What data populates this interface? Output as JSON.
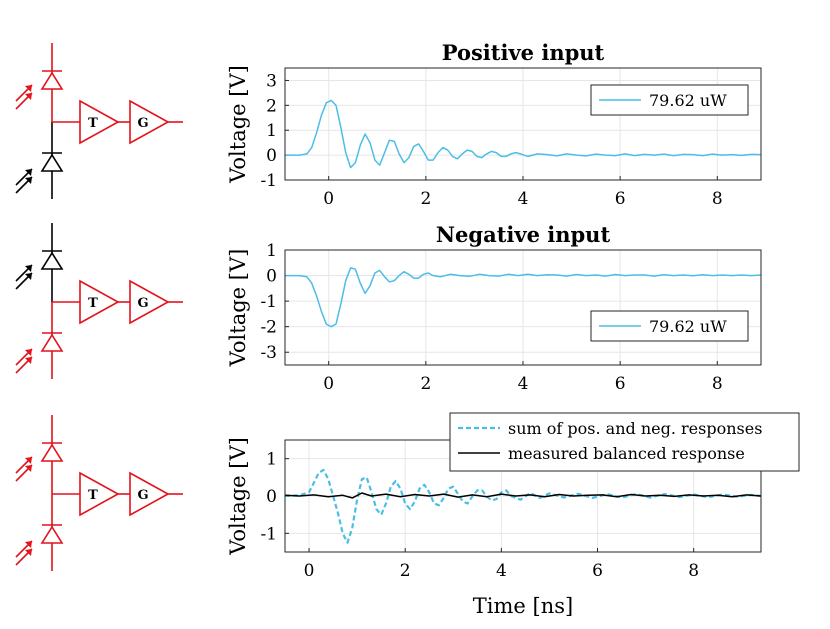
{
  "colors": {
    "circuit_red": "#e3121b",
    "circuit_black": "#000000",
    "trace_blue": "#4cbee6",
    "measured_black": "#000000",
    "grid": "#e6e6e6",
    "axis": "#262626"
  },
  "circuits": [
    {
      "top_diode": "red",
      "bottom_diode": "black",
      "top_arrows": "red",
      "bottom_arrows": "black",
      "amp_label": "T",
      "gain_label": "G"
    },
    {
      "top_diode": "black",
      "bottom_diode": "red",
      "top_arrows": "black",
      "bottom_arrows": "red",
      "amp_label": "T",
      "gain_label": "G"
    },
    {
      "top_diode": "red",
      "bottom_diode": "red",
      "top_arrows": "red",
      "bottom_arrows": "red",
      "amp_label": "T",
      "gain_label": "G"
    }
  ],
  "chart_data": [
    {
      "type": "line",
      "title": "Positive input",
      "xlabel": "",
      "ylabel": "Voltage [V]",
      "xlim": [
        -0.9,
        8.9
      ],
      "ylim": [
        -1,
        3.5
      ],
      "xticks": [
        "0",
        "2",
        "4",
        "6",
        "8"
      ],
      "yticks": [
        "-1",
        "0",
        "1",
        "2",
        "3"
      ],
      "grid": true,
      "legend_position": "top-right",
      "series": [
        {
          "name": "79.62 uW",
          "style": "solid",
          "color": "#4cbee6",
          "x": [
            -0.9,
            -0.6,
            -0.45,
            -0.35,
            -0.25,
            -0.15,
            -0.05,
            0.05,
            0.15,
            0.25,
            0.35,
            0.45,
            0.55,
            0.65,
            0.75,
            0.85,
            0.95,
            1.05,
            1.15,
            1.25,
            1.35,
            1.45,
            1.55,
            1.65,
            1.75,
            1.85,
            1.95,
            2.05,
            2.15,
            2.25,
            2.35,
            2.45,
            2.55,
            2.65,
            2.75,
            2.85,
            2.95,
            3.05,
            3.15,
            3.25,
            3.35,
            3.45,
            3.55,
            3.65,
            3.75,
            3.85,
            3.95,
            4.1,
            4.3,
            4.5,
            4.7,
            4.9,
            5.1,
            5.3,
            5.5,
            5.7,
            5.9,
            6.1,
            6.3,
            6.5,
            6.7,
            6.9,
            7.1,
            7.3,
            7.5,
            7.7,
            7.9,
            8.1,
            8.3,
            8.5,
            8.7,
            8.9
          ],
          "y": [
            0.0,
            0.0,
            0.05,
            0.3,
            0.9,
            1.6,
            2.1,
            2.2,
            2.0,
            1.1,
            0.1,
            -0.5,
            -0.3,
            0.4,
            0.85,
            0.5,
            -0.2,
            -0.4,
            0.1,
            0.6,
            0.55,
            0.05,
            -0.3,
            -0.1,
            0.35,
            0.45,
            0.15,
            -0.2,
            -0.2,
            0.1,
            0.3,
            0.2,
            -0.05,
            -0.15,
            0.05,
            0.2,
            0.15,
            -0.05,
            -0.1,
            0.05,
            0.15,
            0.1,
            -0.05,
            -0.05,
            0.05,
            0.1,
            0.05,
            -0.05,
            0.05,
            0.02,
            -0.03,
            0.05,
            0.0,
            -0.03,
            0.04,
            0.0,
            -0.02,
            0.05,
            -0.02,
            0.03,
            0.0,
            0.04,
            -0.02,
            0.03,
            0.02,
            -0.02,
            0.04,
            0.0,
            0.02,
            -0.01,
            0.03,
            0.02
          ]
        }
      ]
    },
    {
      "type": "line",
      "title": "Negative input",
      "xlabel": "",
      "ylabel": "Voltage [V]",
      "xlim": [
        -0.9,
        8.9
      ],
      "ylim": [
        -3.5,
        1
      ],
      "xticks": [
        "0",
        "2",
        "4",
        "6",
        "8"
      ],
      "yticks": [
        "-3",
        "-2",
        "-1",
        "0",
        "1"
      ],
      "grid": true,
      "legend_position": "bottom-right",
      "series": [
        {
          "name": "79.62 uW",
          "style": "solid",
          "color": "#4cbee6",
          "x": [
            -0.9,
            -0.6,
            -0.45,
            -0.35,
            -0.25,
            -0.15,
            -0.05,
            0.05,
            0.15,
            0.25,
            0.35,
            0.45,
            0.55,
            0.65,
            0.75,
            0.85,
            0.95,
            1.05,
            1.15,
            1.25,
            1.35,
            1.45,
            1.55,
            1.65,
            1.75,
            1.85,
            1.95,
            2.05,
            2.15,
            2.3,
            2.5,
            2.7,
            2.9,
            3.1,
            3.3,
            3.5,
            3.7,
            3.9,
            4.1,
            4.3,
            4.5,
            4.7,
            4.9,
            5.1,
            5.3,
            5.5,
            5.7,
            5.9,
            6.1,
            6.3,
            6.5,
            6.7,
            6.9,
            7.1,
            7.3,
            7.5,
            7.7,
            7.9,
            8.1,
            8.3,
            8.5,
            8.7,
            8.9
          ],
          "y": [
            0.0,
            0.0,
            -0.05,
            -0.3,
            -0.8,
            -1.4,
            -1.9,
            -2.0,
            -1.9,
            -1.1,
            -0.2,
            0.3,
            0.25,
            -0.3,
            -0.7,
            -0.4,
            0.1,
            0.2,
            -0.05,
            -0.25,
            -0.2,
            0.0,
            0.15,
            0.05,
            -0.1,
            -0.1,
            0.05,
            0.1,
            0.0,
            -0.05,
            0.05,
            0.0,
            -0.03,
            0.05,
            0.0,
            -0.02,
            0.05,
            0.0,
            0.05,
            0.0,
            0.03,
            0.02,
            -0.02,
            0.04,
            0.0,
            0.02,
            -0.02,
            0.04,
            0.0,
            0.02,
            0.02,
            -0.02,
            0.03,
            0.0,
            0.02,
            -0.01,
            0.03,
            0.0,
            0.02,
            0.0,
            0.02,
            0.0,
            0.02
          ]
        }
      ]
    },
    {
      "type": "line",
      "title": "",
      "xlabel": "Time [ns]",
      "ylabel": "Voltage [V]",
      "xlim": [
        -0.5,
        9.4
      ],
      "ylim": [
        -1.5,
        1.5
      ],
      "xticks": [
        "0",
        "2",
        "4",
        "6",
        "8"
      ],
      "yticks": [
        "-1",
        "0",
        "1"
      ],
      "grid": true,
      "legend_position": "above-right",
      "series": [
        {
          "name": "sum of pos. and neg. responses",
          "style": "dashed",
          "color": "#4cbee6",
          "x": [
            -0.5,
            -0.2,
            0.0,
            0.1,
            0.2,
            0.3,
            0.4,
            0.5,
            0.6,
            0.7,
            0.8,
            0.9,
            1.0,
            1.1,
            1.2,
            1.3,
            1.4,
            1.5,
            1.6,
            1.7,
            1.8,
            1.9,
            2.0,
            2.1,
            2.2,
            2.3,
            2.4,
            2.5,
            2.6,
            2.7,
            2.8,
            2.9,
            3.0,
            3.1,
            3.2,
            3.3,
            3.4,
            3.5,
            3.6,
            3.7,
            3.8,
            3.9,
            4.0,
            4.1,
            4.2,
            4.4,
            4.6,
            4.8,
            5.0,
            5.3,
            5.6,
            5.9,
            6.2,
            6.5,
            6.8,
            7.1,
            7.4,
            7.7,
            8.0,
            8.3,
            8.6,
            8.9,
            9.2,
            9.4
          ],
          "y": [
            0.0,
            0.02,
            0.1,
            0.35,
            0.62,
            0.7,
            0.45,
            0.0,
            -0.45,
            -1.0,
            -1.25,
            -0.85,
            -0.1,
            0.45,
            0.5,
            0.1,
            -0.35,
            -0.5,
            -0.2,
            0.25,
            0.4,
            0.2,
            -0.2,
            -0.35,
            -0.15,
            0.2,
            0.3,
            0.1,
            -0.2,
            -0.25,
            -0.05,
            0.2,
            0.25,
            0.05,
            -0.15,
            -0.2,
            0.0,
            0.15,
            0.15,
            -0.02,
            -0.12,
            -0.08,
            0.1,
            0.15,
            0.0,
            -0.1,
            0.08,
            -0.05,
            0.07,
            -0.04,
            0.06,
            -0.05,
            0.05,
            -0.04,
            0.05,
            -0.04,
            0.05,
            -0.03,
            0.04,
            -0.03,
            0.04,
            -0.02,
            0.03,
            0.0
          ]
        },
        {
          "name": "measured balanced response",
          "style": "solid",
          "color": "#000000",
          "x": [
            -0.5,
            -0.2,
            0.1,
            0.4,
            0.7,
            0.9,
            1.1,
            1.3,
            1.6,
            1.9,
            2.2,
            2.5,
            2.8,
            3.1,
            3.4,
            3.7,
            4.0,
            4.3,
            4.6,
            4.9,
            5.2,
            5.5,
            5.8,
            6.1,
            6.4,
            6.7,
            7.0,
            7.3,
            7.6,
            7.9,
            8.2,
            8.5,
            8.8,
            9.1,
            9.4
          ],
          "y": [
            0.02,
            0.0,
            0.03,
            -0.02,
            0.02,
            -0.05,
            0.08,
            0.0,
            0.05,
            -0.02,
            0.04,
            0.0,
            0.05,
            -0.03,
            0.03,
            -0.02,
            0.05,
            0.0,
            0.03,
            -0.02,
            0.04,
            0.0,
            0.02,
            0.03,
            -0.02,
            0.04,
            0.0,
            0.02,
            -0.01,
            0.03,
            0.0,
            0.02,
            -0.02,
            0.03,
            0.0
          ]
        }
      ]
    }
  ]
}
